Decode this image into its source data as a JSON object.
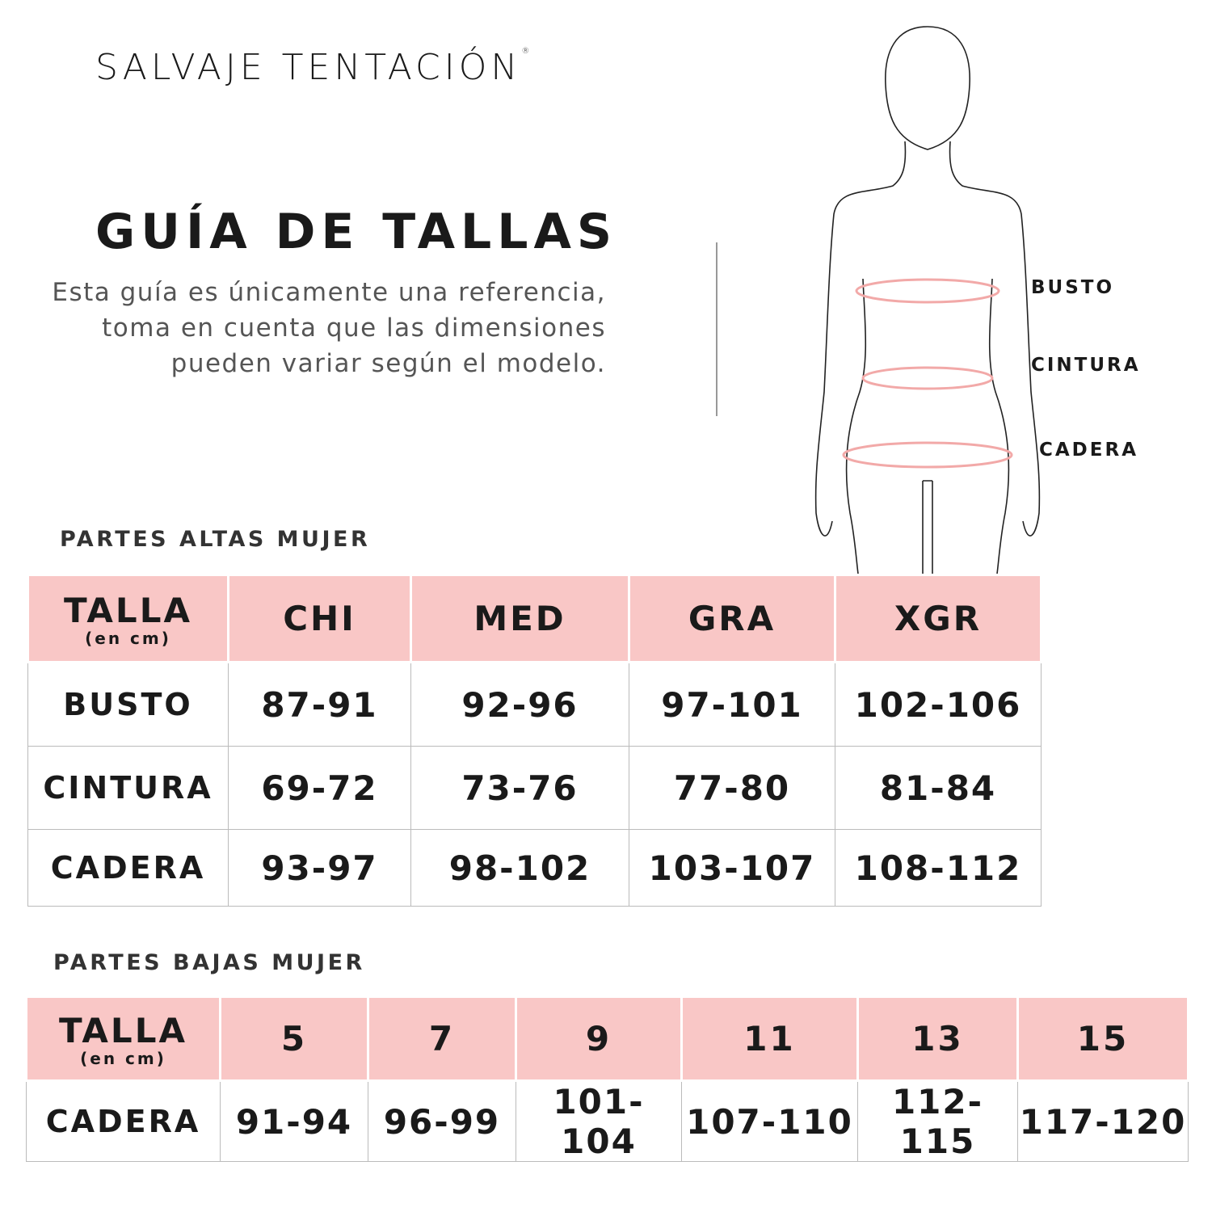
{
  "brand": {
    "name": "SALVAJE TENTACIÓN",
    "mark": "®"
  },
  "header": {
    "title": "GUÍA DE TALLAS",
    "description": "Esta guía es únicamente una referencia, toma en cuenta que las dimensiones pueden variar según el modelo."
  },
  "figure": {
    "labels": [
      "BUSTO",
      "CINTURA",
      "CADERA"
    ],
    "accent_color": "#f2a9a8"
  },
  "colors": {
    "header_bg": "#f9c7c6"
  },
  "upper_table": {
    "section_title": "PARTES ALTAS MUJER",
    "corner": {
      "label": "TALLA",
      "unit": "(en cm)"
    },
    "columns": [
      "CHI",
      "MED",
      "GRA",
      "XGR"
    ],
    "rows": [
      {
        "label": "BUSTO",
        "values": [
          "87-91",
          "92-96",
          "97-101",
          "102-106"
        ]
      },
      {
        "label": "CINTURA",
        "values": [
          "69-72",
          "73-76",
          "77-80",
          "81-84"
        ]
      },
      {
        "label": "CADERA",
        "values": [
          "93-97",
          "98-102",
          "103-107",
          "108-112"
        ]
      }
    ]
  },
  "lower_table": {
    "section_title": "PARTES BAJAS MUJER",
    "corner": {
      "label": "TALLA",
      "unit": "(en cm)"
    },
    "columns": [
      "5",
      "7",
      "9",
      "11",
      "13",
      "15"
    ],
    "rows": [
      {
        "label": "CADERA",
        "values": [
          "91-94",
          "96-99",
          "101-104",
          "107-110",
          "112-115",
          "117-120"
        ]
      }
    ]
  }
}
